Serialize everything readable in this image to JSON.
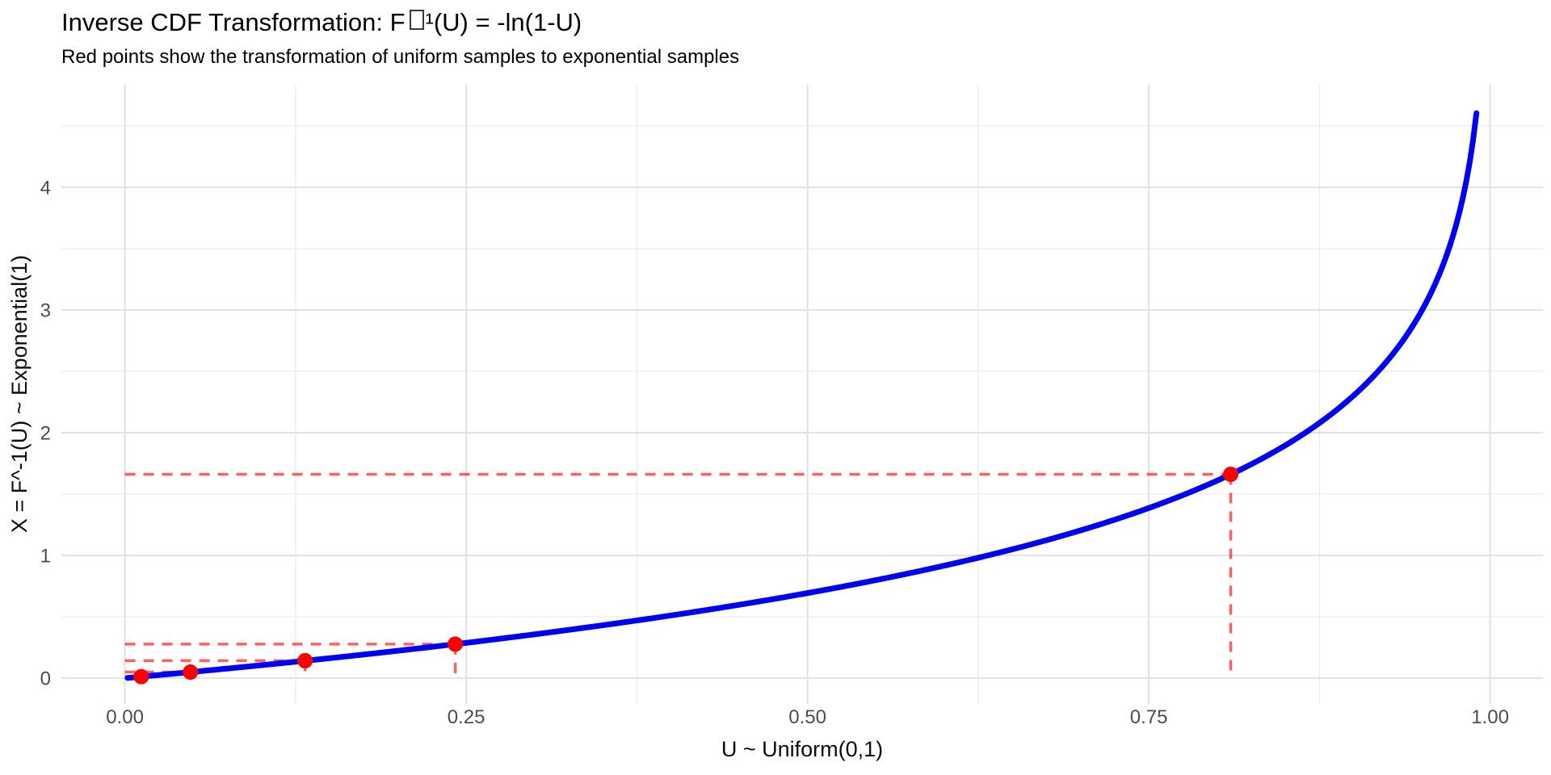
{
  "figure": {
    "title_prefix": "Inverse CDF Transformation: F",
    "title_missing_glyph": "(missing superscript-minus glyph box)",
    "title_suffix": "¹(U) = -ln(1-U)",
    "subtitle": "Red points show the transformation of uniform samples to exponential samples"
  },
  "chart_data": {
    "type": "line",
    "title": "Inverse CDF Transformation: F□¹(U) = -ln(1-U)",
    "subtitle": "Red points show the transformation of uniform samples to exponential samples",
    "xlabel": "U ~ Uniform(0,1)",
    "ylabel": "X = F^-1(U) ~ Exponential(1)",
    "x_ticks": [
      {
        "value": 0.0,
        "label": "0.00"
      },
      {
        "value": 0.25,
        "label": "0.25"
      },
      {
        "value": 0.5,
        "label": "0.50"
      },
      {
        "value": 0.75,
        "label": "0.75"
      },
      {
        "value": 1.0,
        "label": "1.00"
      }
    ],
    "y_ticks": [
      {
        "value": 0,
        "label": "0"
      },
      {
        "value": 1,
        "label": "1"
      },
      {
        "value": 2,
        "label": "2"
      },
      {
        "value": 3,
        "label": "3"
      },
      {
        "value": 4,
        "label": "4"
      }
    ],
    "xlim": [
      -0.0465,
      1.0387
    ],
    "ylim": [
      -0.2105,
      4.836
    ],
    "grid": {
      "shown": true,
      "major_color": "#e3e3e3",
      "minor_color": "#ededed"
    },
    "curve": {
      "formula": "X = -ln(1-U)",
      "u_range": [
        0.002,
        0.99
      ],
      "color": "#0000f2",
      "stroke_width": 7
    },
    "samples": {
      "description": "red points: uniform draws mapped through the inverse CDF",
      "u": [
        0.012,
        0.048,
        0.132,
        0.242,
        0.81
      ],
      "x": [
        0.012,
        0.049,
        0.142,
        0.277,
        1.661
      ],
      "point_color": "#fe0000",
      "point_radius": 9.5,
      "dash_color": "#ff0000",
      "dash_opacity": 0.62
    },
    "legend": "none"
  }
}
